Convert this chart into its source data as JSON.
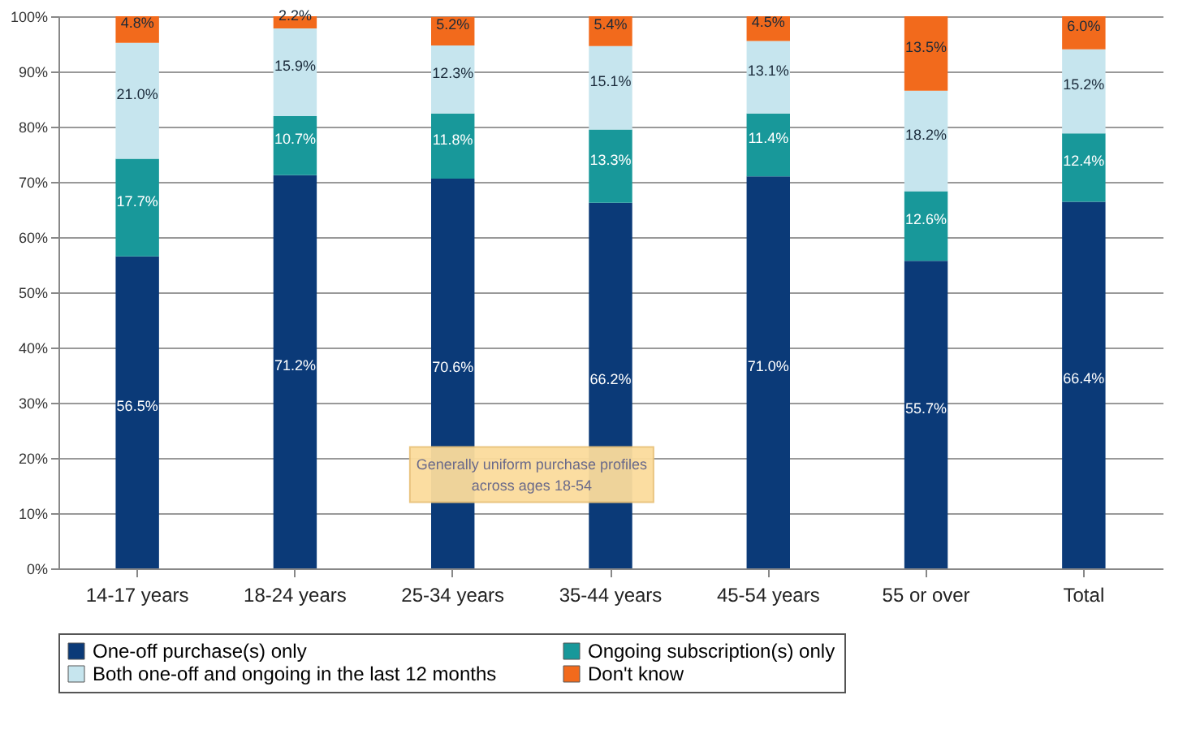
{
  "chart_data": {
    "type": "bar",
    "stacked": true,
    "categories": [
      "14-17 years",
      "18-24 years",
      "25-34 years",
      "35-44 years",
      "45-54 years",
      "55 or over",
      "Total"
    ],
    "series": [
      {
        "name": "One-off purchase(s) only",
        "color": "#0b3a78",
        "values": [
          56.5,
          71.2,
          70.6,
          66.2,
          71.0,
          55.7,
          66.4
        ],
        "value_labels": [
          "56.5%",
          "71.2%",
          "70.6%",
          "66.2%",
          "71.0%",
          "55.7%",
          "66.4%"
        ]
      },
      {
        "name": "Ongoing subscription(s) only",
        "color": "#18989a",
        "values": [
          17.7,
          10.7,
          11.8,
          13.3,
          11.4,
          12.6,
          12.4
        ],
        "value_labels": [
          "17.7%",
          "10.7%",
          "11.8%",
          "13.3%",
          "11.4%",
          "12.6%",
          "12.4%"
        ]
      },
      {
        "name": "Both one-off and ongoing in the last 12 months",
        "color": "#c6e5ee",
        "values": [
          21.0,
          15.9,
          12.3,
          15.1,
          13.1,
          18.2,
          15.2
        ],
        "value_labels": [
          "21.0%",
          "15.9%",
          "12.3%",
          "15.1%",
          "13.1%",
          "18.2%",
          "15.2%"
        ]
      },
      {
        "name": "Don't know",
        "color": "#f26a1c",
        "values": [
          4.8,
          2.2,
          5.2,
          5.4,
          4.5,
          13.5,
          6.0
        ],
        "value_labels": [
          "4.8%",
          "2.2%",
          "5.2%",
          "5.4%",
          "4.5%",
          "13.5%",
          "6.0%"
        ]
      }
    ],
    "ylim": [
      0,
      100
    ],
    "yticks": [
      {
        "value": 0,
        "label": "0%"
      },
      {
        "value": 10,
        "label": "10%"
      },
      {
        "value": 20,
        "label": "20%"
      },
      {
        "value": 30,
        "label": "30%"
      },
      {
        "value": 40,
        "label": "40%"
      },
      {
        "value": 50,
        "label": "50%"
      },
      {
        "value": 60,
        "label": "60%"
      },
      {
        "value": 70,
        "label": "70%"
      },
      {
        "value": 80,
        "label": "80%"
      },
      {
        "value": 90,
        "label": "90%"
      },
      {
        "value": 100,
        "label": "100%"
      }
    ],
    "grid": "y",
    "legend": "bottom",
    "annotations": [
      "Generally uniform purchase profiles across ages 18-54"
    ]
  }
}
